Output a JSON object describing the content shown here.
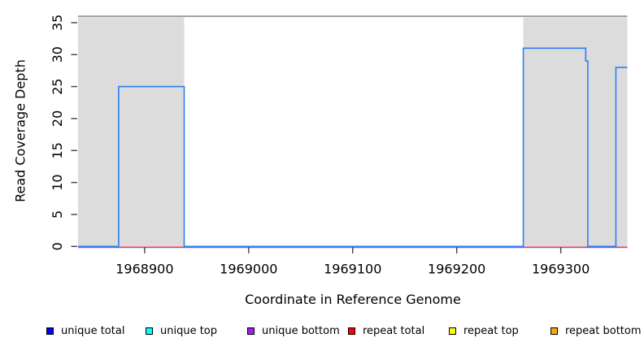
{
  "chart_data": {
    "type": "line",
    "subtype": "step-coverage",
    "title": "",
    "xlabel": "Coordinate in Reference Genome",
    "ylabel": "Read Coverage Depth",
    "xlim": [
      1968836,
      1969364
    ],
    "ylim": [
      0,
      36
    ],
    "x_ticks": [
      1968900,
      1969000,
      1969100,
      1969200,
      1969300
    ],
    "y_ticks": [
      0,
      5,
      10,
      15,
      20,
      25,
      30,
      35
    ],
    "grid": false,
    "legend_position": "bottom",
    "top_boundary_line": {
      "y": 36,
      "color": "#949494"
    },
    "repeat_regions": {
      "fill_color": "#dcdcdc",
      "spans": [
        [
          1968836,
          1968938
        ],
        [
          1969264,
          1969364
        ]
      ]
    },
    "series": [
      {
        "name": "unique total",
        "legend_color": "#0000ff",
        "line_color": "#2e7df5",
        "steps": [
          [
            1968836,
            0
          ],
          [
            1968875,
            25
          ],
          [
            1968938,
            0
          ],
          [
            1969264,
            31
          ],
          [
            1969324,
            29
          ],
          [
            1969326,
            0
          ],
          [
            1969353,
            28
          ],
          [
            1969364,
            null
          ]
        ]
      },
      {
        "name": "unique top",
        "legend_color": "#00ffff",
        "line_color": "#00ffff",
        "constant_value": 0,
        "visible_in_plot": false
      },
      {
        "name": "unique bottom",
        "legend_color": "#a020f0",
        "line_color": "#7d63f0",
        "constant_value": 0,
        "visible_in_plot": true
      },
      {
        "name": "repeat total",
        "legend_color": "#ff0000",
        "line_color": "#f23b50",
        "constant_value": 0,
        "visible_in_plot": true
      },
      {
        "name": "repeat top",
        "legend_color": "#ffff00",
        "line_color": "#ffff00",
        "constant_value": 0,
        "visible_in_plot": false
      },
      {
        "name": "repeat bottom",
        "legend_color": "#ffa500",
        "line_color": "#ffa500",
        "constant_value": 0,
        "visible_in_plot": false
      }
    ],
    "legend": [
      {
        "label": "unique total",
        "color": "#0000ff"
      },
      {
        "label": "unique top",
        "color": "#00ffff"
      },
      {
        "label": "unique bottom",
        "color": "#a020f0"
      },
      {
        "label": "repeat total",
        "color": "#ff0000"
      },
      {
        "label": "repeat top",
        "color": "#ffff00"
      },
      {
        "label": "repeat bottom",
        "color": "#ffa500"
      }
    ]
  }
}
